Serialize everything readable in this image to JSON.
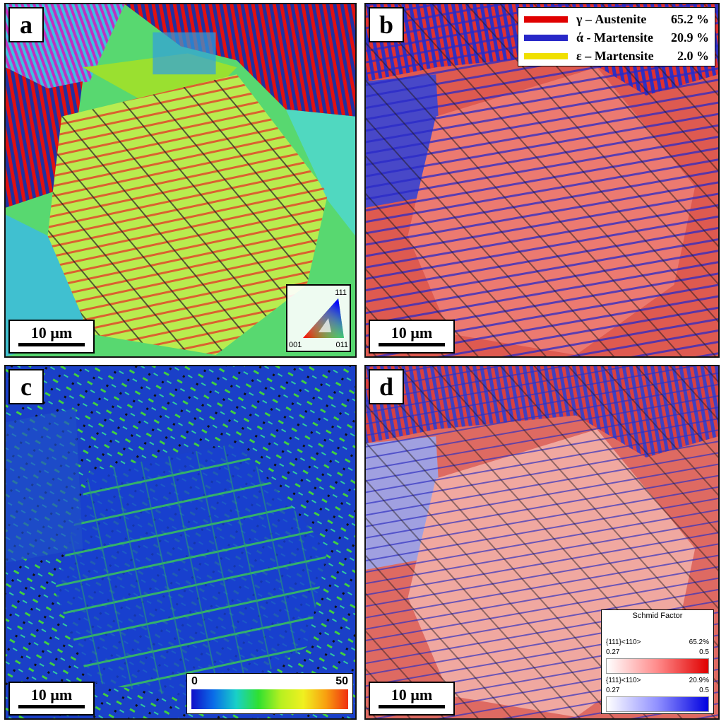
{
  "panels": {
    "a": {
      "label": "a",
      "scale": "10 µm",
      "ipf": {
        "top": "111",
        "left": "001",
        "right": "011"
      }
    },
    "b": {
      "label": "b",
      "scale": "10 µm",
      "legend": [
        {
          "name": "γ – Austenite",
          "pct": "65.2 %",
          "color": "#e00000"
        },
        {
          "name": "ά - Martensite",
          "pct": "20.9 %",
          "color": "#2828c8"
        },
        {
          "name": "ε – Martensite",
          "pct": "2.0 %",
          "color": "#f0e000"
        }
      ]
    },
    "c": {
      "label": "c",
      "scale": "10 µm",
      "colorbar": {
        "min": "0",
        "max": "50"
      }
    },
    "d": {
      "label": "d",
      "scale": "10 µm",
      "schmid": {
        "title": "Schmid Factor",
        "r1": {
          "sys": "{111}<110>",
          "pct": "65.2%",
          "min": "0.27",
          "max": "0.5"
        },
        "r2": {
          "sys": "{111}<110>",
          "pct": "20.9%",
          "min": "0.27",
          "max": "0.5"
        }
      }
    }
  },
  "colors": {
    "austenite": "#e00000",
    "martensite_alpha": "#2828c8",
    "martensite_eps": "#f0e000"
  }
}
